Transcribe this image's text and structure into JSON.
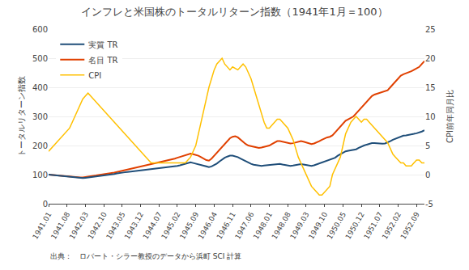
{
  "chart_data": {
    "type": "line",
    "title": "インフレと米国株のトータルリターン指数（1941年1月＝100）",
    "ylabel": "トータルリターン指数",
    "y2label": "CPI前年同月比",
    "source": "出典：　ロバート・シラー教授のデータから浜町 SCI 計算",
    "categories": [
      "1941.01",
      null,
      null,
      null,
      null,
      null,
      null,
      "1941.08",
      null,
      null,
      null,
      null,
      null,
      null,
      "1942.03",
      null,
      null,
      null,
      null,
      null,
      null,
      "1942.10",
      null,
      null,
      null,
      null,
      null,
      null,
      "1943.05",
      null,
      null,
      null,
      null,
      null,
      null,
      "1943.12",
      null,
      null,
      null,
      null,
      null,
      null,
      "1944.07",
      null,
      null,
      null,
      null,
      null,
      null,
      "1945.02",
      null,
      null,
      null,
      null,
      null,
      null,
      "1945.09",
      null,
      null,
      null,
      null,
      null,
      null,
      "1946.04",
      null,
      null,
      null,
      null,
      null,
      null,
      "1946.11",
      null,
      null,
      null,
      null,
      null,
      null,
      "1947.06",
      null,
      null,
      null,
      null,
      null,
      null,
      "1948.01",
      null,
      null,
      null,
      null,
      null,
      null,
      "1948.08",
      null,
      null,
      null,
      null,
      null,
      null,
      "1949.03",
      null,
      null,
      null,
      null,
      null,
      null,
      "1949.10",
      null,
      null,
      null,
      null,
      null,
      null,
      "1950.05",
      null,
      null,
      null,
      null,
      null,
      null,
      "1950.12",
      null,
      null,
      null,
      null,
      null,
      null,
      "1951.07",
      null,
      null,
      null,
      null,
      null,
      null,
      "1952.02",
      null,
      null,
      null,
      null,
      null,
      null,
      "1952.09",
      null,
      null,
      null
    ],
    "series": [
      {
        "name": "実質 TR",
        "color": "#1f4e79",
        "values": [
          100,
          99,
          98,
          97,
          96,
          95,
          94,
          93,
          92,
          91,
          90,
          89,
          88,
          88,
          89,
          90,
          91,
          92,
          93,
          94,
          95,
          96,
          97,
          98,
          100,
          102,
          104,
          106,
          107,
          108,
          109,
          110,
          111,
          112,
          113,
          114,
          115,
          116,
          117,
          118,
          119,
          120,
          121,
          122,
          123,
          124,
          125,
          126,
          128,
          130,
          132,
          135,
          138,
          140,
          142,
          140,
          138,
          135,
          132,
          130,
          128,
          126,
          128,
          132,
          138,
          145,
          152,
          158,
          162,
          165,
          165,
          163,
          160,
          155,
          150,
          145,
          140,
          137,
          134,
          132,
          130,
          130,
          131,
          132,
          133,
          135,
          137,
          138,
          137,
          135,
          133,
          131,
          130,
          131,
          133,
          135,
          136,
          135,
          133,
          131,
          130,
          132,
          135,
          138,
          142,
          146,
          148,
          150,
          153,
          158,
          165,
          170,
          175,
          180,
          182,
          183,
          184,
          187,
          192,
          197,
          200,
          203,
          206,
          208,
          208,
          207,
          206,
          206,
          207,
          210,
          215,
          220,
          224,
          228,
          232,
          234,
          235,
          236,
          238,
          240,
          242,
          244,
          248,
          252
        ]
      },
      {
        "name": "名目 TR",
        "color": "#e04000",
        "values": [
          100,
          99,
          98,
          97,
          96,
          95,
          94,
          93,
          92,
          91,
          90,
          90,
          90,
          90,
          91,
          92,
          93,
          95,
          97,
          99,
          100,
          101,
          102,
          103,
          105,
          107,
          109,
          111,
          113,
          115,
          117,
          119,
          121,
          123,
          125,
          127,
          130,
          132,
          134,
          136,
          138,
          140,
          142,
          144,
          146,
          148,
          150,
          152,
          155,
          158,
          161,
          165,
          168,
          170,
          172,
          170,
          168,
          165,
          160,
          155,
          150,
          148,
          155,
          165,
          175,
          185,
          195,
          205,
          215,
          225,
          230,
          232,
          228,
          220,
          212,
          205,
          200,
          198,
          195,
          193,
          192,
          193,
          195,
          198,
          200,
          205,
          210,
          215,
          215,
          213,
          210,
          208,
          207,
          208,
          210,
          213,
          215,
          213,
          210,
          207,
          205,
          207,
          210,
          215,
          220,
          225,
          228,
          230,
          235,
          245,
          255,
          265,
          275,
          285,
          290,
          295,
          300,
          310,
          320,
          330,
          340,
          350,
          360,
          370,
          375,
          378,
          380,
          382,
          385,
          390,
          400,
          410,
          420,
          430,
          440,
          445,
          448,
          450,
          455,
          460,
          465,
          470,
          480,
          490
        ]
      },
      {
        "name": "CPI",
        "color": "#ffc000",
        "axis": "y2",
        "values": [
          4.0,
          4.5,
          5.0,
          5.5,
          6.0,
          6.5,
          7.0,
          7.5,
          8.0,
          9.0,
          10.0,
          11.0,
          12.0,
          13.0,
          13.5,
          14.0,
          13.5,
          13.0,
          12.5,
          12.0,
          11.5,
          11.0,
          10.5,
          10.0,
          9.5,
          9.0,
          8.5,
          8.0,
          7.5,
          7.0,
          6.5,
          6.0,
          5.5,
          5.0,
          4.5,
          4.0,
          3.5,
          3.0,
          2.5,
          2.0,
          2.0,
          2.0,
          2.0,
          2.0,
          2.0,
          2.0,
          2.0,
          2.0,
          2.0,
          2.0,
          2.0,
          2.0,
          2.0,
          2.5,
          3.0,
          4.0,
          5.0,
          7.0,
          9.0,
          11.0,
          13.0,
          15.0,
          16.5,
          18.0,
          19.0,
          19.5,
          20.0,
          19.0,
          18.5,
          18.0,
          18.5,
          18.2,
          18.0,
          18.5,
          19.0,
          18.5,
          17.5,
          16.5,
          15.0,
          13.5,
          12.0,
          10.5,
          9.0,
          8.0,
          8.0,
          8.5,
          9.0,
          9.5,
          9.5,
          9.0,
          8.5,
          8.0,
          7.0,
          6.0,
          4.5,
          3.0,
          2.0,
          1.0,
          0.0,
          -1.0,
          -2.0,
          -2.5,
          -3.0,
          -3.5,
          -3.5,
          -3.0,
          -2.5,
          -2.0,
          0.0,
          1.0,
          2.0,
          3.0,
          5.0,
          7.0,
          8.0,
          9.0,
          9.5,
          10.0,
          9.5,
          9.0,
          9.5,
          9.5,
          9.0,
          8.5,
          8.0,
          7.5,
          7.0,
          6.5,
          6.0,
          5.5,
          4.5,
          3.5,
          3.0,
          2.5,
          2.0,
          2.0,
          1.5,
          1.5,
          1.5,
          2.0,
          2.5,
          2.5,
          2.0,
          2.0
        ]
      }
    ],
    "ylim": [
      0,
      600
    ],
    "yticks": [
      0,
      100,
      200,
      300,
      400,
      500,
      600
    ],
    "y2lim": [
      -5,
      25
    ],
    "y2ticks": [
      -5,
      0,
      5,
      10,
      15,
      20,
      25
    ],
    "grid": true,
    "legend": "upper left"
  }
}
